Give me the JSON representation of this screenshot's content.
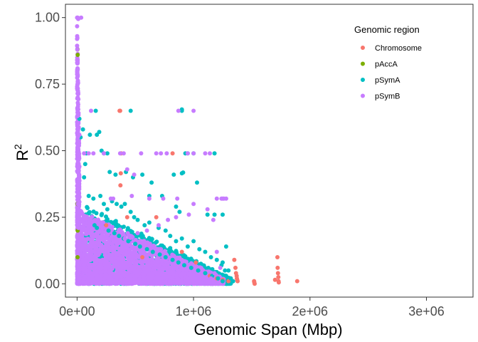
{
  "chart_data": {
    "type": "scatter",
    "title": "",
    "xlabel": "Genomic Span (Mbp)",
    "ylabel": "R",
    "ylabel_superscript": "2",
    "xlim": [
      -100000,
      3400000
    ],
    "ylim": [
      -0.05,
      1.05
    ],
    "x_ticks": [
      0,
      1000000,
      2000000,
      3000000
    ],
    "x_tick_labels": [
      "0e+00",
      "1e+06",
      "2e+06",
      "3e+06"
    ],
    "y_ticks": [
      0,
      0.25,
      0.5,
      0.75,
      1.0
    ],
    "y_tick_labels": [
      "0.00",
      "0.25",
      "0.50",
      "0.75",
      "1.00"
    ],
    "grid": false,
    "legend": {
      "title": "Genomic region",
      "placement": "top-right inside"
    },
    "series": [
      {
        "name": "Chromosome",
        "color": "#F8766D",
        "points": [
          [
            370000,
            0.65
          ],
          [
            365000,
            0.65
          ],
          [
            375000,
            0.415
          ],
          [
            372000,
            0.37
          ],
          [
            378000,
            0.49
          ],
          [
            430000,
            0.25
          ],
          [
            680000,
            0.25
          ],
          [
            820000,
            0.49
          ],
          [
            1350000,
            0.09
          ],
          [
            1360000,
            0.06
          ],
          [
            1365000,
            0.04
          ],
          [
            1370000,
            0.03
          ],
          [
            1372000,
            0.02
          ],
          [
            1375000,
            0.015
          ],
          [
            1378000,
            0.01
          ],
          [
            1520000,
            0.01
          ],
          [
            1522000,
            0.005
          ],
          [
            1525000,
            0.0
          ],
          [
            1700000,
            0.015
          ],
          [
            1720000,
            0.1
          ],
          [
            1722000,
            0.06
          ],
          [
            1725000,
            0.04
          ],
          [
            1728000,
            0.025
          ],
          [
            1730000,
            0.01
          ],
          [
            1732000,
            0.005
          ],
          [
            1890000,
            0.01
          ],
          [
            1140000,
            0.03
          ],
          [
            1200000,
            0.02
          ],
          [
            1250000,
            0.015
          ],
          [
            900000,
            0.12
          ],
          [
            1020000,
            0.08
          ],
          [
            560000,
            0.1
          ],
          [
            250000,
            0.22
          ],
          [
            1300000,
            0.01
          ],
          [
            1320000,
            0.02
          ]
        ]
      },
      {
        "name": "pAccA",
        "color": "#7CAE00",
        "points": [
          [
            3000,
            0.88
          ],
          [
            5000,
            0.86
          ],
          [
            3000,
            0.3
          ],
          [
            5000,
            0.2
          ],
          [
            4000,
            0.1
          ]
        ]
      },
      {
        "name": "pSymA",
        "color": "#00BFC4",
        "points": [
          [
            160000,
            0.65
          ],
          [
            460000,
            0.65
          ],
          [
            900000,
            0.65
          ],
          [
            900000,
            0.655
          ],
          [
            230000,
            0.49
          ],
          [
            260000,
            0.49
          ],
          [
            1180000,
            0.49
          ],
          [
            1000000,
            0.49
          ],
          [
            950000,
            0.49
          ],
          [
            930000,
            0.49
          ],
          [
            900000,
            0.415
          ],
          [
            910000,
            0.418
          ],
          [
            70000,
            0.45
          ],
          [
            80000,
            0.49
          ],
          [
            20000,
            0.62
          ],
          [
            30000,
            0.55
          ],
          [
            50000,
            0.58
          ],
          [
            110000,
            0.56
          ],
          [
            170000,
            0.56
          ],
          [
            190000,
            0.57
          ],
          [
            210000,
            0.5
          ],
          [
            280000,
            0.42
          ],
          [
            330000,
            0.41
          ],
          [
            420000,
            0.42
          ],
          [
            480000,
            0.4
          ],
          [
            560000,
            0.41
          ],
          [
            640000,
            0.38
          ],
          [
            830000,
            0.41
          ],
          [
            1030000,
            0.38
          ],
          [
            620000,
            0.33
          ],
          [
            730000,
            0.33
          ],
          [
            850000,
            0.29
          ],
          [
            880000,
            0.27
          ],
          [
            1120000,
            0.26
          ],
          [
            1180000,
            0.26
          ],
          [
            1250000,
            0.26
          ],
          [
            1280000,
            0.14
          ],
          [
            1250000,
            0.08
          ],
          [
            1300000,
            0.05
          ],
          [
            1320000,
            0.02
          ],
          [
            1280000,
            0.03
          ],
          [
            1340000,
            0.01
          ],
          [
            60000,
            0.4
          ],
          [
            100000,
            0.33
          ],
          [
            140000,
            0.32
          ],
          [
            200000,
            0.33
          ],
          [
            230000,
            0.3
          ],
          [
            260000,
            0.28
          ],
          [
            300000,
            0.31
          ],
          [
            340000,
            0.3
          ],
          [
            380000,
            0.29
          ],
          [
            410000,
            0.3
          ],
          [
            460000,
            0.27
          ],
          [
            490000,
            0.25
          ],
          [
            520000,
            0.24
          ],
          [
            580000,
            0.22
          ],
          [
            620000,
            0.23
          ],
          [
            700000,
            0.21
          ],
          [
            760000,
            0.2
          ],
          [
            800000,
            0.18
          ],
          [
            850000,
            0.16
          ],
          [
            900000,
            0.17
          ],
          [
            950000,
            0.14
          ],
          [
            1000000,
            0.16
          ],
          [
            1050000,
            0.13
          ],
          [
            1100000,
            0.12
          ],
          [
            1150000,
            0.1
          ],
          [
            1200000,
            0.09
          ],
          [
            1240000,
            0.07
          ],
          [
            1270000,
            0.05
          ],
          [
            150000,
            0.22
          ],
          [
            170000,
            0.21
          ],
          [
            270000,
            0.2
          ],
          [
            320000,
            0.19
          ],
          [
            360000,
            0.18
          ],
          [
            400000,
            0.17
          ],
          [
            440000,
            0.16
          ],
          [
            500000,
            0.15
          ],
          [
            540000,
            0.14
          ],
          [
            600000,
            0.13
          ],
          [
            650000,
            0.12
          ],
          [
            710000,
            0.11
          ],
          [
            760000,
            0.1
          ],
          [
            820000,
            0.09
          ],
          [
            870000,
            0.08
          ],
          [
            920000,
            0.07
          ],
          [
            980000,
            0.06
          ],
          [
            1040000,
            0.05
          ],
          [
            1100000,
            0.04
          ],
          [
            1160000,
            0.03
          ],
          [
            1210000,
            0.02
          ],
          [
            1250000,
            0.01
          ]
        ]
      },
      {
        "name": "pSymB",
        "color": "#C77CFF",
        "points": [
          [
            0,
            1.0
          ],
          [
            5000,
            1.0
          ],
          [
            10000,
            0.995
          ],
          [
            35000,
            1.0
          ],
          [
            0,
            0.92
          ],
          [
            2000,
            0.88
          ],
          [
            3000,
            0.8
          ],
          [
            4000,
            0.75
          ],
          [
            5000,
            0.7
          ],
          [
            6000,
            0.68
          ],
          [
            2000,
            0.66
          ],
          [
            4000,
            0.63
          ],
          [
            5000,
            0.6
          ],
          [
            6000,
            0.55
          ],
          [
            7000,
            0.52
          ],
          [
            8000,
            0.5
          ],
          [
            60000,
            0.49
          ],
          [
            100000,
            0.49
          ],
          [
            140000,
            0.49
          ],
          [
            230000,
            0.49
          ],
          [
            370000,
            0.49
          ],
          [
            400000,
            0.49
          ],
          [
            550000,
            0.49
          ],
          [
            680000,
            0.49
          ],
          [
            720000,
            0.49
          ],
          [
            770000,
            0.49
          ],
          [
            950000,
            0.49
          ],
          [
            1000000,
            0.49
          ],
          [
            1100000,
            0.49
          ],
          [
            1140000,
            0.49
          ],
          [
            120000,
            0.65
          ],
          [
            870000,
            0.65
          ],
          [
            1000000,
            0.65
          ],
          [
            20000,
            0.56
          ],
          [
            430000,
            0.43
          ],
          [
            490000,
            0.41
          ],
          [
            470000,
            0.33
          ],
          [
            620000,
            0.32
          ],
          [
            740000,
            0.32
          ],
          [
            860000,
            0.32
          ],
          [
            1200000,
            0.32
          ],
          [
            1240000,
            0.32
          ],
          [
            1250000,
            0.32
          ],
          [
            1260000,
            0.32
          ],
          [
            1280000,
            0.32
          ],
          [
            290000,
            0.32
          ],
          [
            310000,
            0.32
          ],
          [
            1000000,
            0.3
          ],
          [
            1120000,
            0.28
          ],
          [
            1170000,
            0.24
          ],
          [
            960000,
            0.26
          ],
          [
            850000,
            0.25
          ],
          [
            780000,
            0.24
          ],
          [
            700000,
            0.22
          ],
          [
            600000,
            0.2
          ],
          [
            520000,
            0.19
          ],
          [
            460000,
            0.18
          ],
          [
            410000,
            0.17
          ],
          [
            360000,
            0.16
          ],
          [
            300000,
            0.15
          ],
          [
            250000,
            0.14
          ],
          [
            200000,
            0.13
          ],
          [
            150000,
            0.12
          ],
          [
            110000,
            0.11
          ],
          [
            80000,
            0.1
          ],
          [
            50000,
            0.09
          ],
          [
            30000,
            0.08
          ],
          [
            10000,
            0.07
          ],
          [
            1200000,
            0.12
          ],
          [
            1230000,
            0.06
          ],
          [
            1180000,
            0.04
          ],
          [
            1150000,
            0.02
          ],
          [
            1100000,
            0.015
          ],
          [
            1050000,
            0.01
          ],
          [
            1000000,
            0.0
          ],
          [
            3000,
            0.45
          ],
          [
            4000,
            0.42
          ],
          [
            5000,
            0.38
          ],
          [
            6000,
            0.35
          ],
          [
            7000,
            0.3
          ],
          [
            8000,
            0.27
          ],
          [
            9000,
            0.25
          ],
          [
            10000,
            0.23
          ],
          [
            11000,
            0.22
          ],
          [
            12000,
            0.21
          ]
        ]
      }
    ],
    "dense_regions": [
      {
        "series": "pSymA",
        "description": "dense band",
        "x_range": [
          50000,
          1320000
        ],
        "y_top_at_x0": 0.3,
        "y_top_at_xmax": 0.02,
        "count": 1400
      },
      {
        "series": "pSymB",
        "description": "dense band",
        "x_range": [
          0,
          1260000
        ],
        "y_top_at_x0": 0.28,
        "y_top_at_xmax": 0.02,
        "count": 2200
      },
      {
        "series": "pSymB",
        "description": "near-zero column",
        "x_range": [
          0,
          20000
        ],
        "y_top_at_x0": 1.0,
        "y_top_at_xmax": 0.45,
        "count": 500
      }
    ]
  }
}
